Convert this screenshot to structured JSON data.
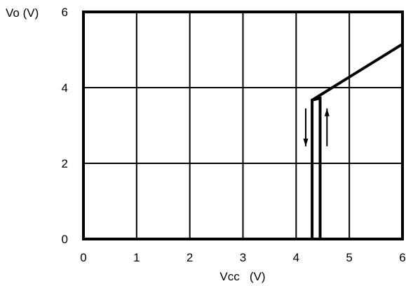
{
  "chart_data": {
    "type": "line",
    "xlabel": "Vcc   (V)",
    "ylabel": "Vo (V)",
    "xlim": [
      0,
      6
    ],
    "ylim": [
      0,
      6
    ],
    "grid": true,
    "x_ticks": [
      "0",
      "1",
      "2",
      "3",
      "4",
      "5",
      "6"
    ],
    "y_ticks": [
      "0",
      "2",
      "4",
      "6"
    ],
    "series": [
      {
        "values": [
          {
            "x": 4.3,
            "y": 0
          },
          {
            "x": 4.3,
            "y": 3.67
          },
          {
            "x": 4.45,
            "y": 3.72
          },
          {
            "x": 4.45,
            "y": 0
          }
        ]
      },
      {
        "values": [
          {
            "x": 4.3,
            "y": 3.67
          },
          {
            "x": 6.0,
            "y": 5.15
          }
        ]
      }
    ],
    "annotations": [
      {
        "type": "arrow",
        "direction": "down",
        "x": 4.18,
        "y_from": 3.45,
        "y_to": 2.45
      },
      {
        "type": "arrow",
        "direction": "up",
        "x": 4.58,
        "y_from": 2.45,
        "y_to": 3.45
      }
    ]
  }
}
